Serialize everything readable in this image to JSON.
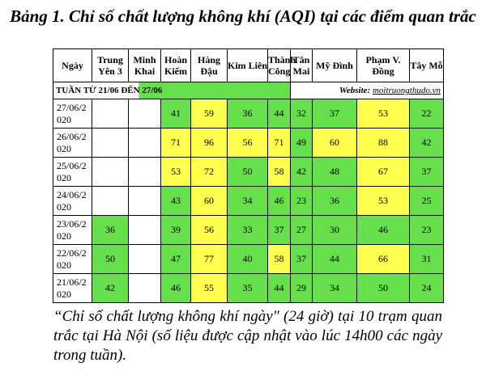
{
  "title": "Bảng 1. Chỉ số chất lượng không khí (AQI) tại các điểm quan trắc",
  "table": {
    "columns": [
      "Ngày",
      "Trung Yên 3",
      "Minh Khai",
      "Hoàn Kiếm",
      "Hàng Đậu",
      "Kim Liên",
      "Thành Công",
      "Tân Mai",
      "Mỹ Đình",
      "Phạm V. Đồng",
      "Tây Mỗ"
    ],
    "week": "TUẦN TỪ 21/06 ĐẾN 27/06",
    "website_label": "Website:",
    "website": "moitruongthudo.vn",
    "palette": {
      "g": "#66e04a",
      "y": "#ffff4d"
    },
    "rows": [
      {
        "date": "27/06/2020",
        "values": [
          null,
          null,
          41,
          59,
          36,
          44,
          32,
          37,
          53,
          22
        ],
        "levels": [
          null,
          null,
          "g",
          "y",
          "g",
          "g",
          "g",
          "g",
          "y",
          "g"
        ]
      },
      {
        "date": "26/06/2020",
        "values": [
          null,
          null,
          71,
          96,
          56,
          71,
          49,
          60,
          88,
          42
        ],
        "levels": [
          null,
          null,
          "y",
          "y",
          "y",
          "y",
          "g",
          "y",
          "y",
          "g"
        ]
      },
      {
        "date": "25/06/2020",
        "values": [
          null,
          null,
          53,
          72,
          50,
          58,
          42,
          48,
          67,
          37
        ],
        "levels": [
          null,
          null,
          "y",
          "y",
          "g",
          "y",
          "g",
          "g",
          "y",
          "g"
        ]
      },
      {
        "date": "24/06/2020",
        "values": [
          null,
          null,
          43,
          60,
          34,
          46,
          23,
          36,
          53,
          25
        ],
        "levels": [
          null,
          null,
          "g",
          "y",
          "g",
          "g",
          "g",
          "g",
          "y",
          "g"
        ]
      },
      {
        "date": "23/06/2020",
        "values": [
          36,
          null,
          39,
          56,
          33,
          37,
          27,
          30,
          46,
          23
        ],
        "levels": [
          "g",
          null,
          "g",
          "y",
          "g",
          "g",
          "g",
          "g",
          "g",
          "g"
        ]
      },
      {
        "date": "22/06/2020",
        "values": [
          50,
          null,
          47,
          77,
          40,
          58,
          37,
          44,
          66,
          31
        ],
        "levels": [
          "g",
          null,
          "g",
          "y",
          "g",
          "y",
          "g",
          "g",
          "y",
          "g"
        ]
      },
      {
        "date": "21/06/2020",
        "values": [
          42,
          null,
          46,
          55,
          35,
          44,
          29,
          34,
          50,
          24
        ],
        "levels": [
          "g",
          null,
          "g",
          "y",
          "g",
          "g",
          "g",
          "g",
          "g",
          "g"
        ]
      }
    ]
  },
  "caption": "“Chỉ số chất lượng không khí ngày\" (24 giờ) tại 10 trạm quan trắc tại Hà Nội (số liệu được cập nhật vào lúc 14h00 các ngày trong tuần)."
}
